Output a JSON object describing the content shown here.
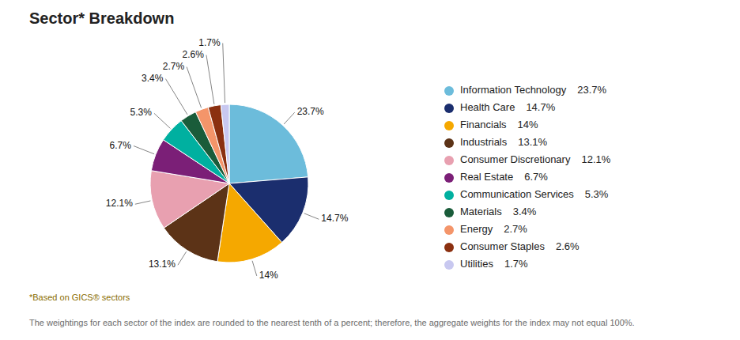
{
  "chart_data": {
    "type": "pie",
    "title": "Sector* Breakdown",
    "categories": [
      "Information Technology",
      "Health Care",
      "Financials",
      "Industrials",
      "Consumer Discretionary",
      "Real Estate",
      "Communication Services",
      "Materials",
      "Energy",
      "Consumer Staples",
      "Utilities"
    ],
    "values": [
      23.7,
      14.7,
      14,
      13.1,
      12.1,
      6.7,
      5.3,
      3.4,
      2.7,
      2.6,
      1.7
    ],
    "value_labels": [
      "23.7%",
      "14.7%",
      "14%",
      "13.1%",
      "12.1%",
      "6.7%",
      "5.3%",
      "3.4%",
      "2.7%",
      "2.6%",
      "1.7%"
    ],
    "colors": [
      "#6CBCDB",
      "#1B2E6E",
      "#F5A800",
      "#5C3317",
      "#E8A0B0",
      "#7B1F77",
      "#00B0A0",
      "#1A5C3A",
      "#F4956A",
      "#8B3010",
      "#C8C8F0"
    ],
    "data_labels": true,
    "legend": "right",
    "annotations": [
      "*Based on GICS® sectors",
      "The weightings for each sector of the index are rounded to the nearest tenth of a percent; therefore, the aggregate weights for the index may not equal 100%."
    ]
  }
}
